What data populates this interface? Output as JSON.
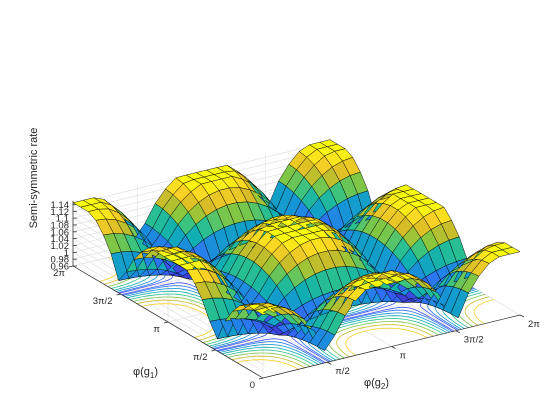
{
  "chart_data": {
    "type": "surface3d",
    "zlabel": "Semi-symmetric rate",
    "xlabel_text": "φ(g",
    "xlabel_sub": "2",
    "xlabel_close": ")",
    "ylabel_text": "φ(g",
    "ylabel_sub": "1",
    "ylabel_close": ")",
    "x_ticks": [
      {
        "value": 1.5708,
        "label": "π/2"
      },
      {
        "value": 3.1416,
        "label": "π"
      },
      {
        "value": 4.7124,
        "label": "3π/2"
      },
      {
        "value": 6.2832,
        "label": "2π"
      }
    ],
    "y_ticks": [
      {
        "value": 0,
        "label": "0"
      },
      {
        "value": 1.5708,
        "label": "π/2"
      },
      {
        "value": 3.1416,
        "label": "π"
      },
      {
        "value": 4.7124,
        "label": "3π/2"
      },
      {
        "value": 6.2832,
        "label": "2π"
      }
    ],
    "z_ticks": [
      {
        "value": 0.96,
        "label": "0.96"
      },
      {
        "value": 0.98,
        "label": "0.98"
      },
      {
        "value": 1.0,
        "label": "1"
      },
      {
        "value": 1.02,
        "label": "1.02"
      },
      {
        "value": 1.04,
        "label": "1.04"
      },
      {
        "value": 1.06,
        "label": "1.06"
      },
      {
        "value": 1.08,
        "label": "1.08"
      },
      {
        "value": 1.1,
        "label": "1.1"
      },
      {
        "value": 1.12,
        "label": "1.12"
      },
      {
        "value": 1.14,
        "label": "1.14"
      }
    ],
    "x_range": [
      0,
      6.2832
    ],
    "y_range": [
      0,
      6.2832
    ],
    "z_range": [
      0.96,
      1.15
    ],
    "grid": true,
    "surface": {
      "description_formula": "z = 0.96 + 0.19 * clip(|cos(x)| * |cos(y)| scaled, capped plateau at 1.145)",
      "grid_points": 25,
      "z_min": 0.96,
      "z_cap": 1.145
    },
    "colormap": [
      "#3e26a8",
      "#3a53f7",
      "#2a79f1",
      "#1498d3",
      "#10b0b0",
      "#2ec28a",
      "#8ac73d",
      "#d6bb27",
      "#fbd325",
      "#f9fb0e"
    ],
    "contour_levels": [
      0.98,
      1.0,
      1.02,
      1.04,
      1.06,
      1.08,
      1.1,
      1.12
    ]
  }
}
